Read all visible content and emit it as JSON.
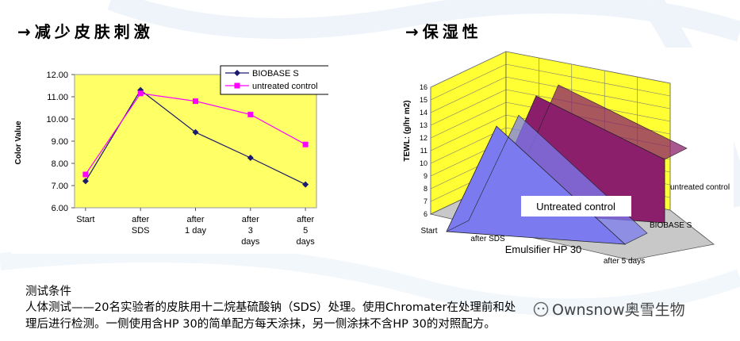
{
  "headings": {
    "left": "→减少皮肤刺激",
    "right": "→保湿性"
  },
  "chart_data": [
    {
      "type": "line",
      "title": "",
      "xlabel": "",
      "ylabel": "Color Value",
      "categories": [
        [
          "Start"
        ],
        [
          "after",
          "SDS"
        ],
        [
          "after",
          "1 day"
        ],
        [
          "after",
          "3",
          "days"
        ],
        [
          "after",
          "5",
          "days"
        ]
      ],
      "ylim": [
        6.0,
        12.0
      ],
      "yticks": [
        "6.00",
        "7.00",
        "8.00",
        "9.00",
        "10.00",
        "11.00",
        "12.00"
      ],
      "grid": "none",
      "legend_position": "top-right",
      "series": [
        {
          "name": "BIOBASE S",
          "values": [
            7.2,
            11.3,
            9.4,
            8.25,
            7.05
          ],
          "color": "#1a1a6e",
          "marker": "diamond"
        },
        {
          "name": "untreated control",
          "values": [
            7.5,
            11.15,
            10.8,
            10.2,
            8.85
          ],
          "color": "#ff00ff",
          "marker": "square"
        }
      ],
      "plot_background": "#ffff66"
    },
    {
      "type": "area",
      "subtype": "3d-area",
      "title": "",
      "ylabel": "TEWL: (g/hr m2)",
      "xlabel": "Emulsifier HP 30",
      "ylim": [
        6,
        16
      ],
      "yticks": [
        "6",
        "7",
        "8",
        "9",
        "10",
        "11",
        "12",
        "13",
        "14",
        "15",
        "16"
      ],
      "categories": [
        "Start",
        "after SDS",
        "after 5 days"
      ],
      "series": [
        {
          "name": "BIOBASE S",
          "values": [
            6,
            14.8,
            6
          ],
          "color": "#7b7bef"
        },
        {
          "name": "untreated control",
          "values": [
            6,
            15.5,
            11
          ],
          "color": "#8b1f6b"
        }
      ],
      "annotation": "Untreated control",
      "wall_color": "#ffff33"
    }
  ],
  "note": {
    "title": "测试条件",
    "line1": "人体测试——20名实验者的皮肤用十二烷基硫酸钠（SDS）处理。使用Chromater在处理前和处",
    "line2": "理后进行检测。一侧使用含HP 30的简单配方每天涂抹，另一侧涂抹不含HP 30的对照配方。"
  },
  "watermark": "Ownsnow奥雪生物"
}
